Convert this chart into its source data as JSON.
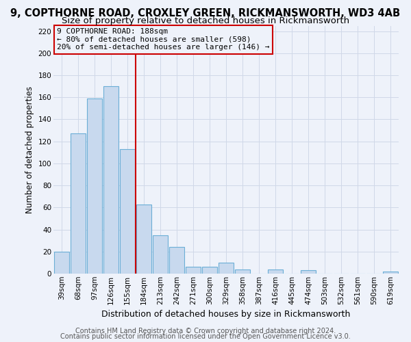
{
  "title": "9, COPTHORNE ROAD, CROXLEY GREEN, RICKMANSWORTH, WD3 4AB",
  "subtitle": "Size of property relative to detached houses in Rickmansworth",
  "xlabel": "Distribution of detached houses by size in Rickmansworth",
  "ylabel": "Number of detached properties",
  "bar_labels": [
    "39sqm",
    "68sqm",
    "97sqm",
    "126sqm",
    "155sqm",
    "184sqm",
    "213sqm",
    "242sqm",
    "271sqm",
    "300sqm",
    "329sqm",
    "358sqm",
    "387sqm",
    "416sqm",
    "445sqm",
    "474sqm",
    "503sqm",
    "532sqm",
    "561sqm",
    "590sqm",
    "619sqm"
  ],
  "bar_values": [
    20,
    127,
    159,
    170,
    113,
    63,
    35,
    24,
    6,
    6,
    10,
    4,
    0,
    4,
    0,
    3,
    0,
    0,
    0,
    0,
    2
  ],
  "bar_color": "#c8d9ee",
  "bar_edgecolor": "#6baed6",
  "bar_linewidth": 0.8,
  "vline_color": "#cc0000",
  "vline_label_title": "9 COPTHORNE ROAD: 188sqm",
  "vline_label_line1": "← 80% of detached houses are smaller (598)",
  "vline_label_line2": "20% of semi-detached houses are larger (146) →",
  "annotation_box_edgecolor": "#cc0000",
  "ylim": [
    0,
    225
  ],
  "yticks": [
    0,
    20,
    40,
    60,
    80,
    100,
    120,
    140,
    160,
    180,
    200,
    220
  ],
  "grid_color": "#d0d8e8",
  "background_color": "#eef2fa",
  "footer1": "Contains HM Land Registry data © Crown copyright and database right 2024.",
  "footer2": "Contains public sector information licensed under the Open Government Licence v3.0.",
  "title_fontsize": 10.5,
  "subtitle_fontsize": 9.5,
  "xlabel_fontsize": 9,
  "ylabel_fontsize": 8.5,
  "tick_fontsize": 7.5,
  "footer_fontsize": 7,
  "annot_fontsize": 8
}
